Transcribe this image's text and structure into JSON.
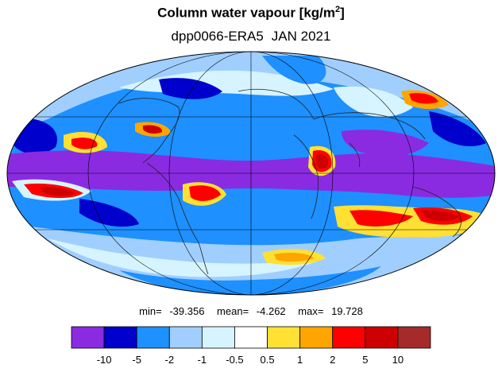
{
  "title": "Column water vapour [kg/m",
  "title_superscript": "2",
  "title_close": "]",
  "subtitle": {
    "experiment": "dpp0066-ERA5",
    "period": "JAN 2021"
  },
  "stats": {
    "min_label": "min=",
    "min": "-39.356",
    "mean_label": "mean=",
    "mean": "-4.262",
    "max_label": "max=",
    "max": "19.728"
  },
  "colorbar": {
    "colors": [
      "#8a2be2",
      "#0000cd",
      "#1e90ff",
      "#a0cfff",
      "#d6f4ff",
      "#ffffff",
      "#ffe033",
      "#ffa500",
      "#ff0000",
      "#cc0000",
      "#a52a2a"
    ],
    "labels": [
      "-10",
      "-5",
      "-2",
      "-1",
      "-0.5",
      "0.5",
      "1",
      "2",
      "5",
      "10"
    ]
  },
  "map": {
    "projection": "Mollweide",
    "colors": {
      "ocean_base": "#1e90ff",
      "strong_negative": "#8a2be2",
      "negative": "#0000cd",
      "light_negative": "#a0cfff",
      "slight_negative": "#d6f4ff",
      "neutral": "#ffffff",
      "slight_positive": "#ffe033",
      "positive": "#ffa500",
      "strong_positive": "#ff0000",
      "very_strong_positive": "#cc0000"
    }
  }
}
